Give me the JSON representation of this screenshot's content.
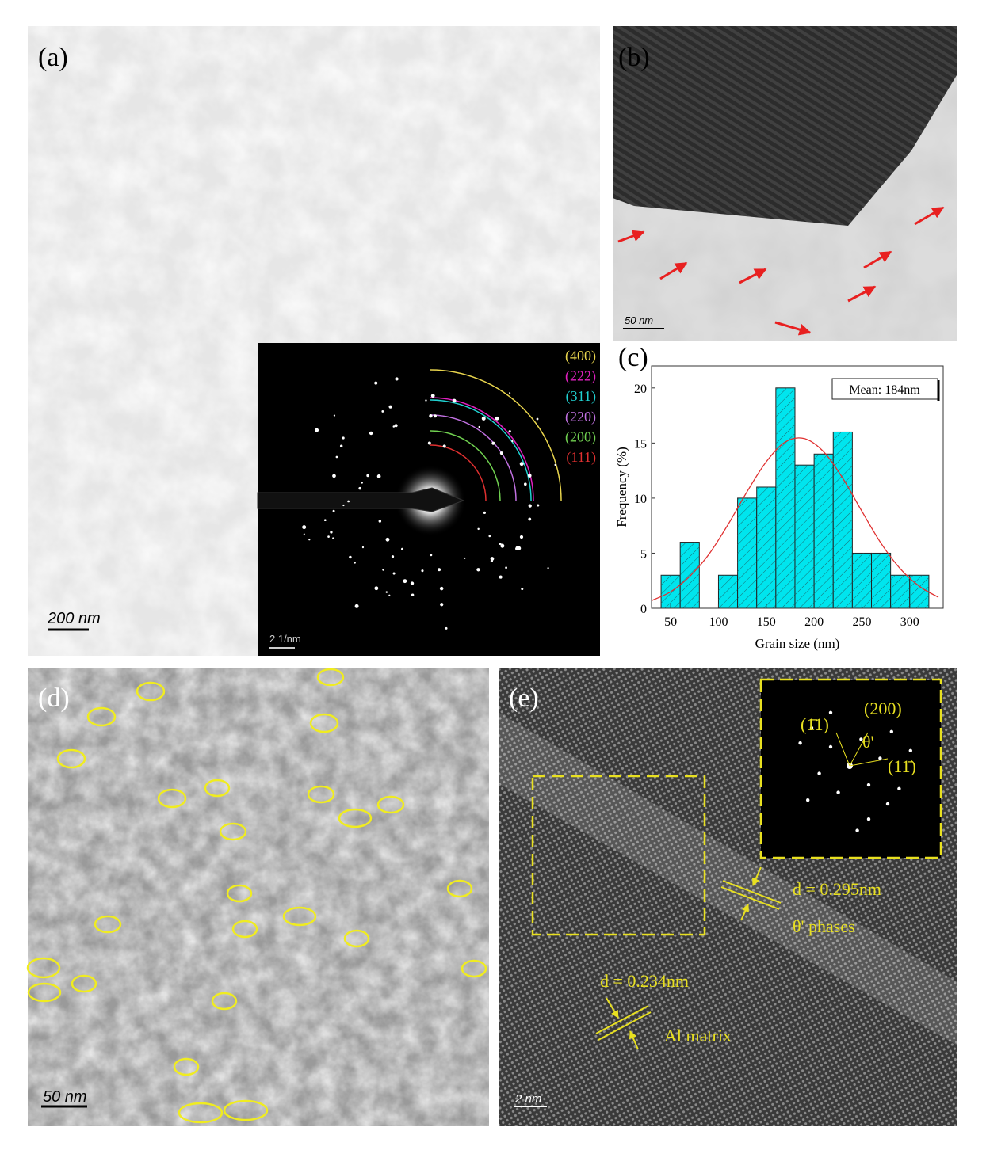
{
  "panels": {
    "a": {
      "label": "(a)",
      "scale_bar": "200 nm",
      "inset": {
        "scale_bar": "2 1/nm",
        "rings": [
          {
            "label": "(400)",
            "color": "#e8d44d"
          },
          {
            "label": "(222)",
            "color": "#e020c0"
          },
          {
            "label": "(311)",
            "color": "#20d0d0"
          },
          {
            "label": "(220)",
            "color": "#c070e0"
          },
          {
            "label": "(200)",
            "color": "#70d050"
          },
          {
            "label": "(111)",
            "color": "#e03030"
          }
        ]
      }
    },
    "b": {
      "label": "(b)",
      "scale_bar": "50 nm"
    },
    "c": {
      "label": "(c)"
    },
    "d": {
      "label": "(d)",
      "scale_bar": "50 nm"
    },
    "e": {
      "label": "(e)",
      "scale_bar": "2 nm",
      "inset_labels": [
        "(1̄1)",
        "(200)",
        "θ'",
        "(11̄)"
      ],
      "spacing_1": "d = 0.295nm",
      "phase_1": "θ' phases",
      "spacing_2": "d = 0.234nm",
      "phase_2": "Al matrix"
    }
  },
  "chart_data": {
    "type": "histogram",
    "xlabel": "Grain size (nm)",
    "ylabel": "Frequency (%)",
    "bins": [
      40,
      60,
      80,
      100,
      120,
      140,
      160,
      180,
      200,
      220,
      240,
      260,
      280,
      300,
      320
    ],
    "values": [
      3,
      6,
      0,
      3,
      10,
      11,
      20,
      13,
      14,
      16,
      5,
      5,
      3,
      3
    ],
    "color": "#00e5ee",
    "hatch": true,
    "xlim": [
      30,
      335
    ],
    "ylim": [
      0,
      22
    ],
    "xticks": [
      50,
      100,
      150,
      200,
      250,
      300
    ],
    "yticks": [
      0,
      5,
      10,
      15,
      20
    ],
    "annotation": "Mean: 184nm",
    "fit": {
      "color": "#e03030",
      "x": [
        30,
        50,
        70,
        90,
        110,
        130,
        150,
        170,
        190,
        210,
        230,
        250,
        270,
        290,
        310,
        330
      ],
      "values": [
        0.7,
        1.5,
        2.9,
        4.9,
        7.6,
        10.6,
        13.3,
        15.1,
        15.4,
        14.2,
        11.8,
        8.8,
        5.9,
        3.6,
        2.0,
        1.0
      ]
    }
  }
}
